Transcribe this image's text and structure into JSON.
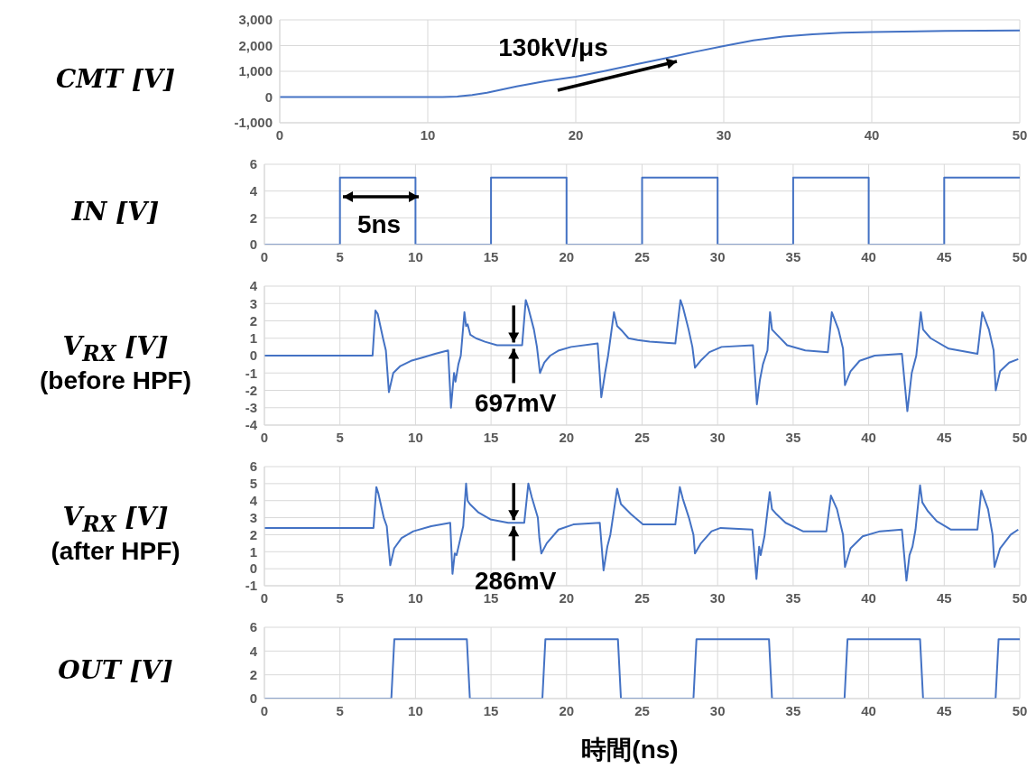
{
  "chart_data": [
    {
      "type": "line",
      "ylabel": "CMT [V]",
      "xlim": [
        0,
        50
      ],
      "xticks": [
        0,
        10,
        20,
        30,
        40,
        50
      ],
      "ylim": [
        -1000,
        3000
      ],
      "yticks": [
        {
          "value": -1000,
          "label": "-1,000"
        },
        0,
        {
          "value": 1000,
          "label": "1,000"
        },
        {
          "value": 2000,
          "label": "2,000"
        },
        {
          "value": 3000,
          "label": "3,000"
        }
      ],
      "grid": true,
      "marker": "none",
      "line_style": "solid",
      "annotations": [
        "130kV/μs"
      ],
      "series": [
        {
          "color": "#4472c4",
          "x": [
            0,
            10,
            11,
            12,
            13,
            14,
            15,
            16,
            17,
            18,
            20,
            22,
            24,
            26,
            28,
            30,
            32,
            34,
            36,
            38,
            40,
            45,
            50
          ],
          "values": [
            0,
            0,
            0,
            20,
            80,
            170,
            290,
            410,
            520,
            620,
            790,
            1020,
            1260,
            1500,
            1750,
            1980,
            2200,
            2350,
            2440,
            2500,
            2530,
            2570,
            2590
          ]
        }
      ]
    },
    {
      "type": "line",
      "ylabel": "IN [V]",
      "xlim": [
        0,
        50
      ],
      "xticks": [
        0,
        5,
        10,
        15,
        20,
        25,
        30,
        35,
        40,
        45,
        50
      ],
      "ylim": [
        0,
        6
      ],
      "yticks": [
        0,
        2,
        4,
        6
      ],
      "grid": true,
      "marker": "none",
      "line_style": "solid",
      "annotations": [
        "5ns"
      ],
      "series": [
        {
          "color": "#4472c4",
          "x": [
            0,
            5,
            5,
            10,
            10,
            15,
            15,
            20,
            20,
            25,
            25,
            30,
            30,
            35,
            35,
            40,
            40,
            45,
            45,
            50
          ],
          "values": [
            0,
            0,
            5,
            5,
            0,
            0,
            5,
            5,
            0,
            0,
            5,
            5,
            0,
            0,
            5,
            5,
            0,
            0,
            5,
            5
          ]
        }
      ]
    },
    {
      "type": "line",
      "ylabel": "V$_{RX}$ [V]\n(before HPF)",
      "xlim": [
        0,
        50
      ],
      "xticks": [
        0,
        5,
        10,
        15,
        20,
        25,
        30,
        35,
        40,
        45,
        50
      ],
      "ylim": [
        -4,
        4
      ],
      "yticks": [
        -4,
        -3,
        -2,
        -1,
        0,
        1,
        2,
        3,
        4
      ],
      "grid": true,
      "marker": "none",
      "line_style": "solid",
      "annotations": [
        {
          "text": "697mV",
          "x": 16.5,
          "y": 0.6
        }
      ],
      "series": [
        {
          "color": "#4472c4",
          "x": [
            0,
            7.16,
            7.35,
            7.5,
            7.85,
            8.04,
            8.24,
            8.53,
            9.0,
            9.7,
            10.5,
            11.3,
            12.16,
            12.35,
            12.55,
            12.65,
            12.84,
            13.0,
            13.24,
            13.35,
            13.45,
            13.63,
            14.0,
            14.6,
            15.4,
            16.4,
            17.06,
            17.3,
            17.45,
            17.84,
            18.04,
            18.24,
            18.53,
            18.92,
            19.5,
            20.3,
            22.06,
            22.3,
            22.55,
            22.75,
            23.14,
            23.35,
            23.7,
            24.1,
            24.7,
            25.5,
            27.2,
            27.54,
            27.7,
            28.08,
            28.33,
            28.5,
            28.87,
            29.46,
            30.26,
            32.34,
            32.6,
            32.8,
            33.0,
            33.3,
            33.47,
            33.6,
            33.93,
            34.6,
            35.8,
            37.3,
            37.56,
            38.0,
            38.3,
            38.43,
            38.8,
            39.4,
            40.4,
            42.2,
            42.56,
            42.85,
            43.15,
            43.45,
            43.6,
            44.1,
            45.3,
            47.2,
            47.52,
            47.96,
            48.27,
            48.41,
            48.7,
            49.3,
            49.9
          ],
          "values": [
            0,
            0,
            2.6,
            2.4,
            1.0,
            0.3,
            -2.1,
            -1.0,
            -0.6,
            -0.3,
            -0.1,
            0.1,
            0.3,
            -3.0,
            -1.0,
            -1.5,
            -0.5,
            0,
            2.5,
            1.7,
            1.8,
            1.2,
            1.0,
            0.8,
            0.6,
            0.6,
            0.6,
            3.2,
            2.8,
            1.5,
            0.5,
            -1.0,
            -0.4,
            0,
            0.3,
            0.5,
            0.7,
            -2.4,
            -1.0,
            0,
            2.5,
            1.7,
            1.4,
            1.0,
            0.9,
            0.8,
            0.7,
            3.2,
            2.8,
            1.5,
            0.5,
            -0.7,
            -0.3,
            0.2,
            0.5,
            0.6,
            -2.8,
            -1.4,
            -0.5,
            0.3,
            2.5,
            1.5,
            1.2,
            0.6,
            0.3,
            0.2,
            2.5,
            1.5,
            0.4,
            -1.7,
            -0.9,
            -0.3,
            0,
            0.1,
            -3.2,
            -1.0,
            0,
            2.5,
            1.5,
            1.0,
            0.4,
            0.1,
            2.5,
            1.5,
            0.3,
            -2.0,
            -0.9,
            -0.4,
            -0.2
          ]
        }
      ]
    },
    {
      "type": "line",
      "ylabel": "V$_{RX}$ [V]\n(after HPF)",
      "xlim": [
        0,
        50
      ],
      "xticks": [
        0,
        5,
        10,
        15,
        20,
        25,
        30,
        35,
        40,
        45,
        50
      ],
      "ylim": [
        -1,
        6
      ],
      "yticks": [
        -1,
        0,
        1,
        2,
        3,
        4,
        5,
        6
      ],
      "grid": true,
      "marker": "none",
      "line_style": "solid",
      "annotations": [
        {
          "text": "286mV",
          "x": 16.5,
          "y": 2.7
        }
      ],
      "series": [
        {
          "color": "#4472c4",
          "x": [
            0,
            7.22,
            7.41,
            7.55,
            7.9,
            8.1,
            8.33,
            8.59,
            9.08,
            9.86,
            11.04,
            12.3,
            12.45,
            12.6,
            12.72,
            12.9,
            13.16,
            13.35,
            13.45,
            13.6,
            14.18,
            14.96,
            16.14,
            17.2,
            17.47,
            17.7,
            18.1,
            18.2,
            18.33,
            18.69,
            19.47,
            20.45,
            22.2,
            22.45,
            22.7,
            22.9,
            23.35,
            23.6,
            24.27,
            25.06,
            27.2,
            27.5,
            27.7,
            28.1,
            28.4,
            28.5,
            28.9,
            29.6,
            30.2,
            32.3,
            32.57,
            32.75,
            32.85,
            33.1,
            33.45,
            33.6,
            33.9,
            34.5,
            35.65,
            37.2,
            37.5,
            37.9,
            38.3,
            38.43,
            38.8,
            39.6,
            40.75,
            42.2,
            42.5,
            42.7,
            42.9,
            43.1,
            43.4,
            43.55,
            43.9,
            44.5,
            45.45,
            47.2,
            47.45,
            47.9,
            48.2,
            48.33,
            48.7,
            49.4,
            49.9
          ],
          "values": [
            2.4,
            2.4,
            4.8,
            4.4,
            3.0,
            2.5,
            0.2,
            1.2,
            1.8,
            2.2,
            2.5,
            2.7,
            -0.3,
            0.9,
            0.8,
            1.5,
            2.5,
            5.0,
            4.0,
            3.8,
            3.3,
            2.9,
            2.7,
            2.7,
            5.0,
            4.2,
            3.0,
            1.8,
            0.9,
            1.5,
            2.3,
            2.6,
            2.7,
            -0.1,
            1.3,
            2.0,
            4.7,
            3.8,
            3.2,
            2.6,
            2.6,
            4.8,
            4.1,
            3.0,
            2.0,
            0.9,
            1.5,
            2.2,
            2.4,
            2.3,
            -0.6,
            1.3,
            0.8,
            1.9,
            4.5,
            3.5,
            3.2,
            2.7,
            2.2,
            2.2,
            4.3,
            3.5,
            2.0,
            0.1,
            1.2,
            1.9,
            2.2,
            2.3,
            -0.7,
            0.8,
            1.3,
            2.3,
            4.9,
            3.9,
            3.4,
            2.8,
            2.3,
            2.3,
            4.6,
            3.5,
            2.0,
            0.1,
            1.2,
            2.0,
            2.3
          ]
        }
      ]
    },
    {
      "type": "line",
      "ylabel": "OUT [V]",
      "xlabel": "時間(ns)",
      "xlim": [
        0,
        50
      ],
      "xticks": [
        0,
        5,
        10,
        15,
        20,
        25,
        30,
        35,
        40,
        45,
        50
      ],
      "ylim": [
        0,
        6
      ],
      "yticks": [
        0,
        2,
        4,
        6
      ],
      "grid": true,
      "marker": "none",
      "line_style": "solid",
      "series": [
        {
          "color": "#4472c4",
          "x": [
            0,
            8.4,
            8.6,
            13.4,
            13.6,
            18.4,
            18.6,
            23.4,
            23.6,
            28.4,
            28.6,
            33.4,
            33.6,
            38.4,
            38.6,
            43.4,
            43.6,
            48.4,
            48.6,
            50
          ],
          "values": [
            0,
            0,
            5,
            5,
            0,
            0,
            5,
            5,
            0,
            0,
            5,
            5,
            0,
            0,
            5,
            5,
            0,
            0,
            5,
            5
          ]
        }
      ]
    }
  ]
}
